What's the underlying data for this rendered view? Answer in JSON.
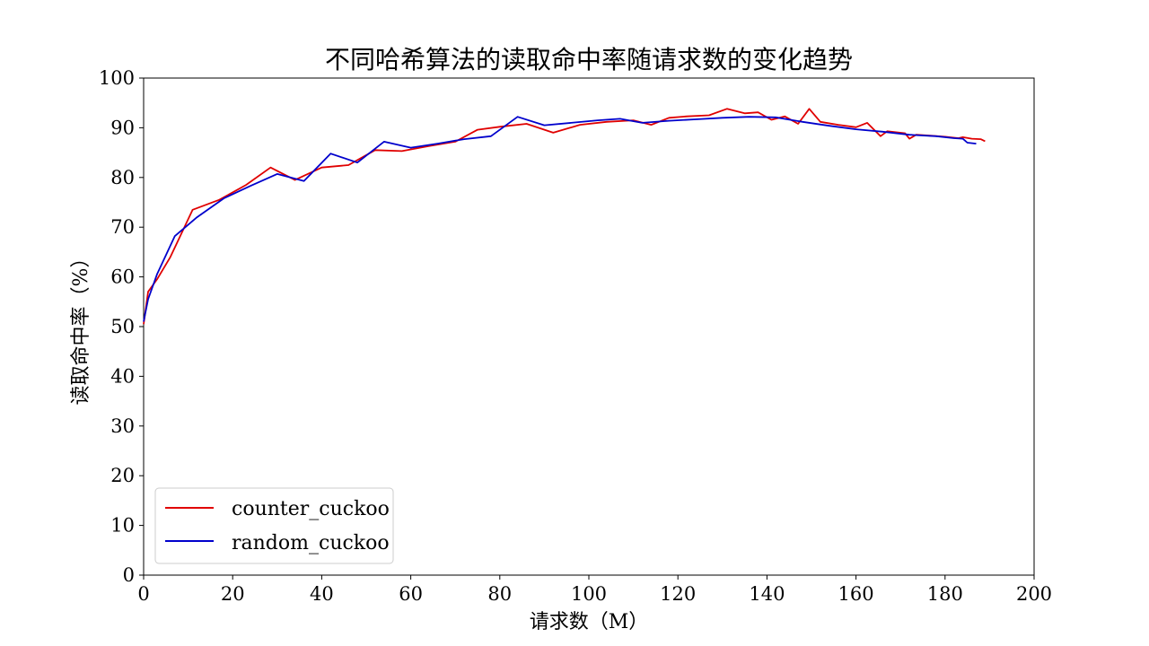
{
  "chart_data": {
    "type": "line",
    "title": "不同哈希算法的读取命中率随请求数的变化趋势",
    "xlabel": "请求数（M）",
    "ylabel": "读取命中率（%）",
    "xlim": [
      0,
      200
    ],
    "ylim": [
      0,
      100
    ],
    "x_ticks": [
      "0",
      "20",
      "40",
      "60",
      "80",
      "100",
      "120",
      "140",
      "160",
      "180",
      "200"
    ],
    "y_ticks": [
      "0",
      "10",
      "20",
      "30",
      "40",
      "50",
      "60",
      "70",
      "80",
      "90",
      "100"
    ],
    "grid": false,
    "legend_position": "lower-left",
    "series": [
      {
        "name": "counter_cuckoo",
        "color": "#e00000",
        "points": [
          [
            0,
            50.5
          ],
          [
            1,
            57
          ],
          [
            3,
            59.5
          ],
          [
            6,
            64
          ],
          [
            11,
            73.5
          ],
          [
            17,
            75.5
          ],
          [
            23,
            78.5
          ],
          [
            28.5,
            82
          ],
          [
            34,
            79.5
          ],
          [
            40,
            82
          ],
          [
            46,
            82.5
          ],
          [
            52,
            85.5
          ],
          [
            58,
            85.3
          ],
          [
            64,
            86.3
          ],
          [
            70,
            87.2
          ],
          [
            75,
            89.6
          ],
          [
            80,
            90.2
          ],
          [
            86,
            90.8
          ],
          [
            92,
            89
          ],
          [
            98,
            90.6
          ],
          [
            104,
            91.2
          ],
          [
            110,
            91.5
          ],
          [
            114,
            90.6
          ],
          [
            118,
            92
          ],
          [
            122,
            92.3
          ],
          [
            127,
            92.5
          ],
          [
            131,
            93.8
          ],
          [
            135,
            92.9
          ],
          [
            138,
            93.1
          ],
          [
            141,
            91.6
          ],
          [
            144,
            92.3
          ],
          [
            147,
            90.8
          ],
          [
            149.5,
            93.8
          ],
          [
            152,
            91.2
          ],
          [
            156,
            90.6
          ],
          [
            160,
            90.1
          ],
          [
            162.5,
            91
          ],
          [
            165.5,
            88.3
          ],
          [
            167,
            89.3
          ],
          [
            171,
            88.9
          ],
          [
            172,
            87.8
          ],
          [
            173.5,
            88.6
          ],
          [
            177,
            88.4
          ],
          [
            180,
            88.2
          ],
          [
            183,
            87.9
          ],
          [
            184,
            88.1
          ],
          [
            186,
            87.8
          ],
          [
            188,
            87.7
          ],
          [
            189,
            87.3
          ]
        ]
      },
      {
        "name": "random_cuckoo",
        "color": "#0000cc",
        "points": [
          [
            0,
            51
          ],
          [
            1,
            55.5
          ],
          [
            3,
            60.5
          ],
          [
            7,
            68.2
          ],
          [
            12,
            72
          ],
          [
            18,
            75.8
          ],
          [
            24,
            78.3
          ],
          [
            30,
            80.7
          ],
          [
            36,
            79.3
          ],
          [
            42,
            84.8
          ],
          [
            48,
            83
          ],
          [
            54,
            87.2
          ],
          [
            60,
            86
          ],
          [
            66,
            86.8
          ],
          [
            72,
            87.7
          ],
          [
            78,
            88.3
          ],
          [
            84,
            92.2
          ],
          [
            90,
            90.5
          ],
          [
            96,
            91
          ],
          [
            102,
            91.5
          ],
          [
            107,
            91.8
          ],
          [
            112,
            91
          ],
          [
            118,
            91.4
          ],
          [
            124,
            91.7
          ],
          [
            130,
            92
          ],
          [
            136,
            92.2
          ],
          [
            142,
            92.1
          ],
          [
            148,
            91.2
          ],
          [
            154,
            90.4
          ],
          [
            160,
            89.7
          ],
          [
            166,
            89.2
          ],
          [
            172,
            88.6
          ],
          [
            178,
            88.3
          ],
          [
            182,
            87.9
          ],
          [
            184,
            87.8
          ],
          [
            185,
            87
          ],
          [
            187,
            86.8
          ]
        ]
      }
    ]
  }
}
